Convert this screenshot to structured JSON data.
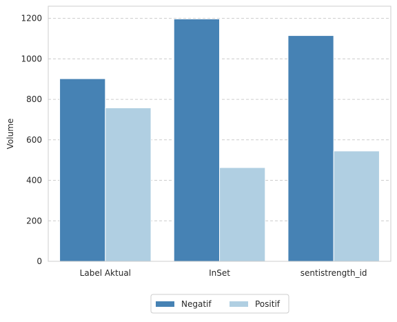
{
  "chart_data": {
    "type": "bar",
    "title": "",
    "xlabel": "",
    "ylabel": "Volume",
    "categories": [
      "Label Aktual",
      "InSet",
      "sentistrength_id"
    ],
    "series": [
      {
        "name": "Negatif",
        "values": [
          902,
          1197,
          1115
        ],
        "color": "#4682b4"
      },
      {
        "name": "Positif",
        "values": [
          758,
          463,
          545
        ],
        "color": "#b0cfe2"
      }
    ],
    "ylim": [
      0,
      1260
    ],
    "yticks": [
      0,
      200,
      400,
      600,
      800,
      1000,
      1200
    ],
    "grid": "horizontal-dashed",
    "legend_position": "bottom-center"
  }
}
